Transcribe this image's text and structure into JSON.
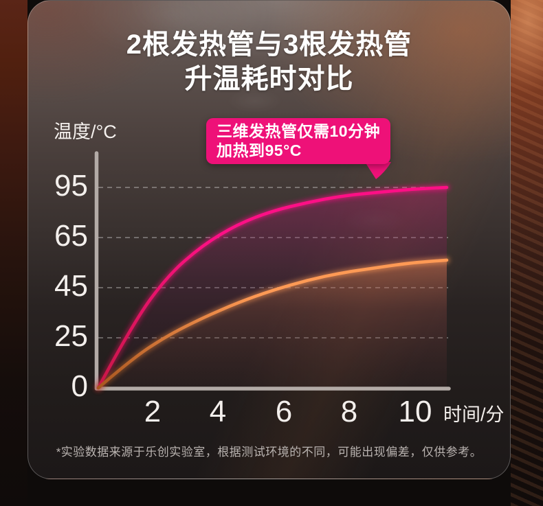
{
  "header": {
    "title_line1": "2根发热管与3根发热管",
    "title_line2": "升温耗时对比"
  },
  "axes": {
    "y_label": "温度/°C",
    "x_label": "时间/分"
  },
  "callout": {
    "line1": "三维发热管仅需10分钟",
    "line2": "加热到95°C"
  },
  "footer": {
    "note": "*实验数据来源于乐创实验室，根据测试环境的不同，可能出现偏差，仅供参考。"
  },
  "colors": {
    "accent_pink": "#ee1178",
    "line_pink_start": "#c81746",
    "line_pink_end": "#ff0f86",
    "line_orange_start": "#a8561f",
    "line_orange_end": "#ff9a55",
    "axis": "#b3aba7",
    "grid": "rgba(255,255,255,0.30)"
  },
  "chart_data": {
    "type": "line",
    "title": "2根发热管与3根发热管升温耗时对比",
    "xlabel": "时间/分",
    "ylabel": "温度/°C",
    "xlim": [
      0,
      10
    ],
    "ylim": [
      0,
      95
    ],
    "x_ticks": [
      2,
      4,
      6,
      8,
      10
    ],
    "y_ticks": [
      0,
      25,
      45,
      65,
      95
    ],
    "grid": "dashed-horizontal",
    "legend_position": "none",
    "annotation": "三维发热管仅需10分钟加热到95°C",
    "x": [
      0,
      1,
      2,
      3,
      4,
      5,
      6,
      7,
      8,
      9,
      10
    ],
    "series": [
      {
        "name": "3根发热管（三维发热管）",
        "color_start": "#c81746",
        "color_end": "#ff0f86",
        "values": [
          0,
          31,
          50,
          62,
          73,
          81,
          86,
          90,
          92,
          94,
          95
        ]
      },
      {
        "name": "2根发热管",
        "color_start": "#a8561f",
        "color_end": "#ff9a55",
        "values": [
          0,
          15,
          26,
          33,
          39,
          44,
          48,
          51,
          53,
          55,
          56
        ]
      }
    ]
  }
}
